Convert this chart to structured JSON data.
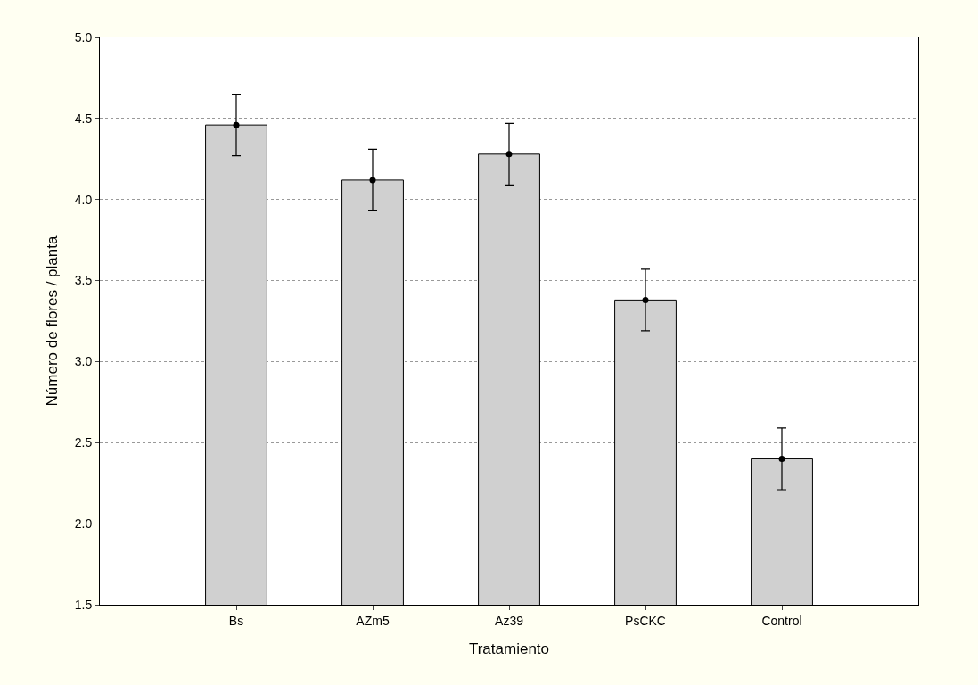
{
  "chart_data": {
    "type": "bar",
    "xlabel": "Tratamiento",
    "ylabel": "Número de flores / planta",
    "categories": [
      "Bs",
      "AZm5",
      "Az39",
      "PsCKC",
      "Control"
    ],
    "series": [
      {
        "color": "#d0d0d0",
        "values": [
          4.46,
          4.12,
          4.28,
          3.38,
          2.4
        ]
      },
      {
        "type": "scatter",
        "color": "#000000",
        "marker": "circle",
        "x": [
          "Bs",
          "AZm5",
          "Az39",
          "PsCKC",
          "Control"
        ],
        "values": [
          4.46,
          4.12,
          4.28,
          3.38,
          2.4
        ],
        "errors": [
          0.19,
          0.19,
          0.19,
          0.19,
          0.19
        ]
      }
    ],
    "ylim": [
      1.5,
      5.0
    ],
    "yticks": [
      {
        "value": 1.5,
        "label": "1.5"
      },
      {
        "value": 2,
        "label": "2.0"
      },
      {
        "value": 2.5,
        "label": "2.5"
      },
      {
        "value": 3,
        "label": "3.0"
      },
      {
        "value": 3.5,
        "label": "3.5"
      },
      {
        "value": 4,
        "label": "4.0"
      },
      {
        "value": 4.5,
        "label": "4.5"
      },
      {
        "value": 5,
        "label": "5.0"
      }
    ],
    "grid": "y"
  }
}
